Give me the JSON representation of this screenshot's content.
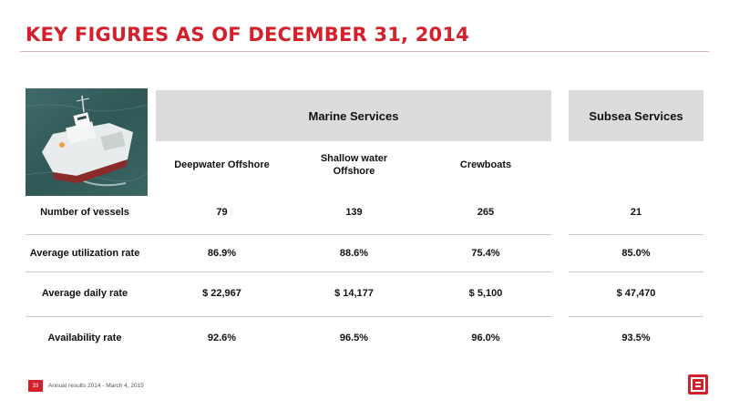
{
  "title": "KEY FIGURES AS OF DECEMBER 31, 2014",
  "groups": {
    "marine": "Marine Services",
    "subsea": "Subsea Services"
  },
  "columns": [
    "Deepwater Offshore",
    "Shallow water\nOffshore",
    "Crewboats"
  ],
  "rows": [
    {
      "label": "Number of vessels",
      "values": [
        "79",
        "139",
        "265",
        "21"
      ]
    },
    {
      "label": "Average utilization rate",
      "values": [
        "86.9%",
        "88.6%",
        "75.4%",
        "85.0%"
      ]
    },
    {
      "label": "Average daily rate",
      "values": [
        "$ 22,967",
        "$ 14,177",
        "$ 5,100",
        "$ 47,470"
      ]
    },
    {
      "label": "Availability rate",
      "values": [
        "92.6%",
        "96.5%",
        "96.0%",
        "93.5%"
      ]
    }
  ],
  "footer": {
    "page_number": "33",
    "text": "Annual results 2014 - March 4, 2015"
  },
  "colors": {
    "accent": "#d4202a",
    "header_fill": "#dcdcdc"
  },
  "icons": {
    "photo": "offshore-vessel-photo",
    "logo": "bourbon-b-logo"
  }
}
